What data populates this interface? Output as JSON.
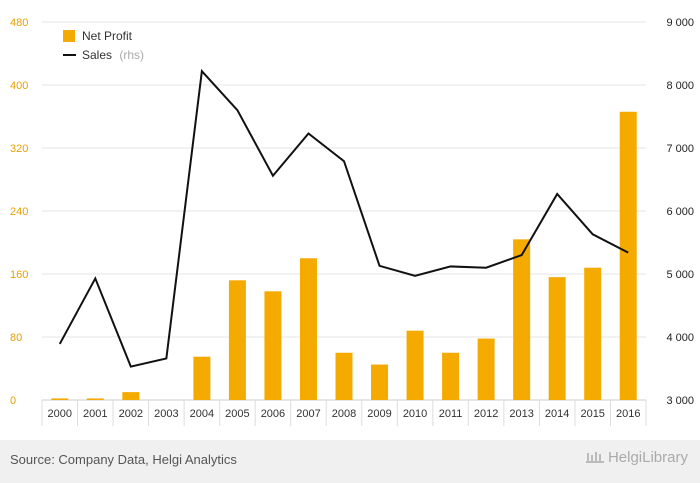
{
  "chart_data": {
    "type": "bar+line",
    "categories": [
      "2000",
      "2001",
      "2002",
      "2003",
      "2004",
      "2005",
      "2006",
      "2007",
      "2008",
      "2009",
      "2010",
      "2011",
      "2012",
      "2013",
      "2014",
      "2015",
      "2016"
    ],
    "series": [
      {
        "name": "Net Profit",
        "type": "bar",
        "axis": "left",
        "values": [
          2,
          2,
          10,
          0,
          55,
          152,
          138,
          180,
          60,
          45,
          88,
          60,
          78,
          204,
          156,
          168,
          366
        ]
      },
      {
        "name": "Sales",
        "type": "line",
        "axis": "right",
        "values": [
          3890,
          4930,
          3530,
          3660,
          8220,
          7600,
          6560,
          7230,
          6790,
          5130,
          4970,
          5120,
          5100,
          5300,
          6270,
          5630,
          5340
        ]
      }
    ],
    "legend": [
      "Net Profit",
      "Sales (rhs)"
    ],
    "legend_position": "top-left",
    "y_left": {
      "min": 0,
      "max": 480,
      "ticks": [
        "0",
        "80",
        "160",
        "240",
        "320",
        "400",
        "480"
      ]
    },
    "y_right": {
      "min": 3000,
      "max": 9000,
      "ticks": [
        "3 000",
        "4 000",
        "5 000",
        "6 000",
        "7 000",
        "8 000",
        "9 000"
      ]
    },
    "grid": true,
    "colors": {
      "bar": "#f5aa00",
      "line": "#111111",
      "left_axis_text": "#e8a000",
      "grid": "#e6e6e6"
    }
  },
  "legend_net_profit": "Net Profit",
  "legend_sales": "Sales",
  "legend_sales_suffix": "(rhs)",
  "source": "Source: Company Data, Helgi Analytics",
  "brand": "HelgiLibrary"
}
